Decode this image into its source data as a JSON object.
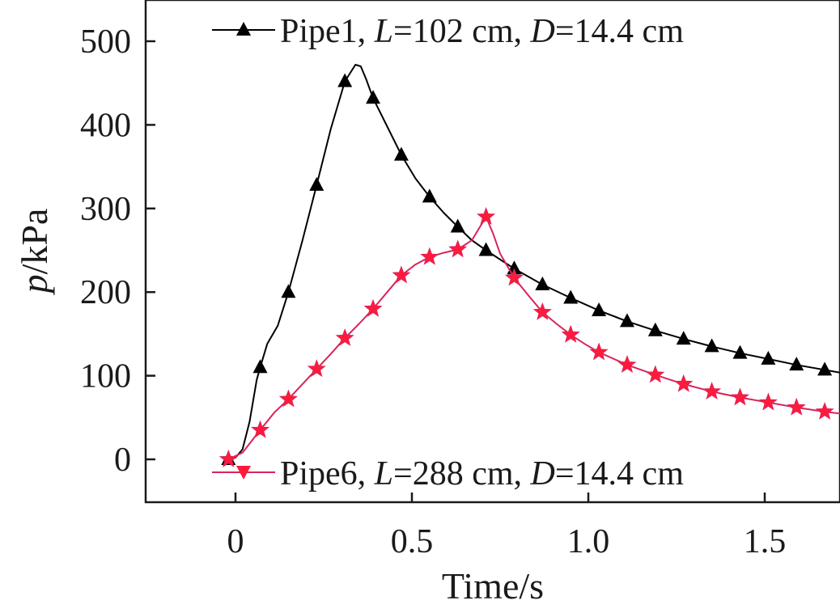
{
  "chart_data": {
    "type": "line",
    "xlabel": "Time/s",
    "ylabel": {
      "var": "p",
      "unit": "/kPa"
    },
    "xlim": [
      -0.25,
      1.75
    ],
    "ylim": [
      -50,
      540
    ],
    "xticks": [
      0,
      0.5,
      1.0,
      1.5
    ],
    "xtick_labels": [
      "0",
      "0.5",
      "1.0",
      "1.5"
    ],
    "yticks": [
      0,
      100,
      200,
      300,
      400,
      500
    ],
    "ytick_labels": [
      "0",
      "100",
      "200",
      "300",
      "400",
      "500"
    ],
    "grid": false,
    "legend_placement": "inside, top (Pipe1) and bottom (Pipe6)",
    "series": [
      {
        "name": "Pipe1, L=102 cm, D=14.4 cm",
        "legend": {
          "pre": "Pipe1, ",
          "v1": "L",
          "mid": "=102 cm, ",
          "v2": "D",
          "post": "=14.4 cm"
        },
        "color": "#000000",
        "marker": "triangle-up",
        "marker_color": "#000000",
        "line": [
          [
            -0.02,
            0
          ],
          [
            0.0,
            2
          ],
          [
            0.02,
            12
          ],
          [
            0.04,
            45
          ],
          [
            0.06,
            95
          ],
          [
            0.07,
            110
          ],
          [
            0.09,
            138
          ],
          [
            0.12,
            160
          ],
          [
            0.15,
            200
          ],
          [
            0.19,
            262
          ],
          [
            0.23,
            328
          ],
          [
            0.27,
            395
          ],
          [
            0.31,
            452
          ],
          [
            0.34,
            472
          ],
          [
            0.355,
            470
          ],
          [
            0.37,
            455
          ],
          [
            0.39,
            432
          ],
          [
            0.43,
            398
          ],
          [
            0.47,
            364
          ],
          [
            0.51,
            336
          ],
          [
            0.55,
            314
          ],
          [
            0.59,
            295
          ],
          [
            0.63,
            278
          ],
          [
            0.67,
            262
          ],
          [
            0.71,
            250
          ],
          [
            0.79,
            228
          ],
          [
            0.87,
            209
          ],
          [
            0.95,
            193
          ],
          [
            1.03,
            178
          ],
          [
            1.11,
            165
          ],
          [
            1.19,
            154
          ],
          [
            1.27,
            144
          ],
          [
            1.35,
            135
          ],
          [
            1.43,
            127
          ],
          [
            1.51,
            120
          ],
          [
            1.59,
            113
          ],
          [
            1.67,
            107
          ],
          [
            1.75,
            101
          ]
        ],
        "markers": [
          [
            -0.02,
            0
          ],
          [
            0.07,
            110
          ],
          [
            0.15,
            200
          ],
          [
            0.23,
            328
          ],
          [
            0.31,
            452
          ],
          [
            0.39,
            432
          ],
          [
            0.47,
            364
          ],
          [
            0.55,
            314
          ],
          [
            0.63,
            278
          ],
          [
            0.71,
            250
          ],
          [
            0.79,
            228
          ],
          [
            0.87,
            209
          ],
          [
            0.95,
            193
          ],
          [
            1.03,
            178
          ],
          [
            1.11,
            165
          ],
          [
            1.19,
            154
          ],
          [
            1.27,
            144
          ],
          [
            1.35,
            135
          ],
          [
            1.43,
            127
          ],
          [
            1.51,
            120
          ],
          [
            1.59,
            113
          ],
          [
            1.67,
            107
          ],
          [
            1.75,
            101
          ]
        ]
      },
      {
        "name": "Pipe6, L=288 cm, D=14.4 cm",
        "legend": {
          "pre": "Pipe6, ",
          "v1": "L",
          "mid": "=288 cm, ",
          "v2": "D",
          "post": "=14.4 cm"
        },
        "color": "#d8245a",
        "marker": "star",
        "marker_color": "#ff1a3c",
        "line": [
          [
            -0.02,
            0
          ],
          [
            0.02,
            8
          ],
          [
            0.07,
            35
          ],
          [
            0.11,
            56
          ],
          [
            0.15,
            72
          ],
          [
            0.19,
            90
          ],
          [
            0.23,
            108
          ],
          [
            0.27,
            126
          ],
          [
            0.31,
            145
          ],
          [
            0.35,
            162
          ],
          [
            0.39,
            180
          ],
          [
            0.43,
            200
          ],
          [
            0.47,
            220
          ],
          [
            0.51,
            233
          ],
          [
            0.55,
            242
          ],
          [
            0.59,
            247
          ],
          [
            0.63,
            251
          ],
          [
            0.67,
            262
          ],
          [
            0.69,
            276
          ],
          [
            0.71,
            290
          ],
          [
            0.73,
            270
          ],
          [
            0.75,
            246
          ],
          [
            0.79,
            217
          ],
          [
            0.83,
            196
          ],
          [
            0.87,
            176
          ],
          [
            0.91,
            162
          ],
          [
            0.95,
            149
          ],
          [
            0.99,
            138
          ],
          [
            1.03,
            128
          ],
          [
            1.11,
            113
          ],
          [
            1.19,
            101
          ],
          [
            1.27,
            90
          ],
          [
            1.35,
            81
          ],
          [
            1.43,
            74
          ],
          [
            1.51,
            68
          ],
          [
            1.59,
            62
          ],
          [
            1.67,
            57
          ],
          [
            1.75,
            53
          ]
        ],
        "markers": [
          [
            -0.02,
            0
          ],
          [
            0.07,
            35
          ],
          [
            0.15,
            72
          ],
          [
            0.23,
            108
          ],
          [
            0.31,
            145
          ],
          [
            0.39,
            180
          ],
          [
            0.47,
            220
          ],
          [
            0.55,
            242
          ],
          [
            0.63,
            251
          ],
          [
            0.71,
            290
          ],
          [
            0.79,
            217
          ],
          [
            0.87,
            176
          ],
          [
            0.95,
            149
          ],
          [
            1.03,
            128
          ],
          [
            1.11,
            113
          ],
          [
            1.19,
            101
          ],
          [
            1.27,
            90
          ],
          [
            1.35,
            81
          ],
          [
            1.43,
            74
          ],
          [
            1.51,
            68
          ],
          [
            1.59,
            62
          ],
          [
            1.67,
            57
          ],
          [
            1.75,
            53
          ]
        ]
      }
    ]
  }
}
